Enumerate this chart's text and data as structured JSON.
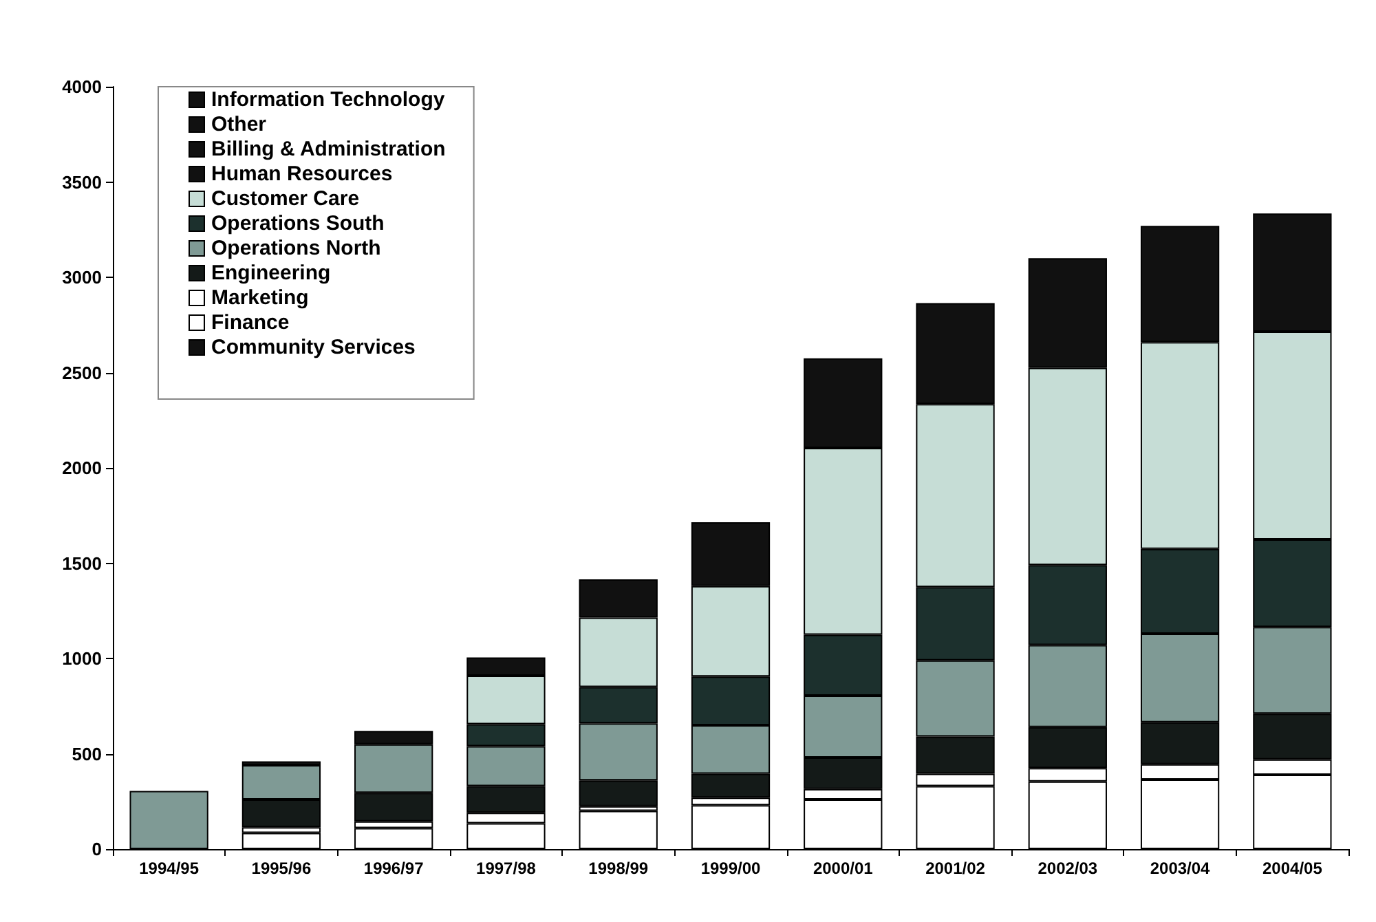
{
  "chart_data": {
    "type": "bar",
    "stacked": true,
    "categories": [
      "1994/95",
      "1995/96",
      "1996/97",
      "1997/98",
      "1998/99",
      "1999/00",
      "2000/01",
      "2001/02",
      "2002/03",
      "2003/04",
      "2004/05"
    ],
    "series": [
      {
        "name": "Community Services",
        "color": "#111111",
        "values": [
          null,
          null,
          null,
          null,
          null,
          null,
          null,
          null,
          null,
          null,
          null
        ]
      },
      {
        "name": "Finance",
        "color": "#ffffff",
        "values": [
          0,
          85,
          110,
          135,
          200,
          230,
          260,
          330,
          355,
          365,
          390
        ]
      },
      {
        "name": "Marketing",
        "color": "#ffffff",
        "values": [
          0,
          30,
          35,
          55,
          25,
          40,
          55,
          65,
          70,
          80,
          80
        ]
      },
      {
        "name": "Engineering",
        "color": "#141a18",
        "values": [
          0,
          145,
          150,
          140,
          135,
          125,
          165,
          195,
          215,
          220,
          240
        ]
      },
      {
        "name": "Operations North",
        "color": "#7f9a95",
        "values": [
          305,
          180,
          255,
          210,
          300,
          255,
          325,
          400,
          430,
          465,
          455
        ]
      },
      {
        "name": "Operations South",
        "color": "#1c302d",
        "values": [
          0,
          0,
          0,
          115,
          190,
          255,
          320,
          385,
          420,
          445,
          460
        ]
      },
      {
        "name": "Customer Care",
        "color": "#c6ddd6",
        "values": [
          0,
          0,
          0,
          255,
          365,
          475,
          980,
          960,
          1035,
          1085,
          1090
        ]
      },
      {
        "name": "Human Resources",
        "color": "#111111",
        "values": [
          null,
          null,
          null,
          null,
          null,
          null,
          null,
          null,
          null,
          null,
          null
        ]
      },
      {
        "name": "Billing & Administration",
        "color": "#111111",
        "values": [
          null,
          null,
          null,
          null,
          null,
          null,
          null,
          null,
          null,
          null,
          null
        ]
      },
      {
        "name": "Other",
        "color": "#111111",
        "values": [
          null,
          null,
          null,
          null,
          null,
          null,
          null,
          null,
          null,
          null,
          null
        ]
      },
      {
        "name": "Information Technology",
        "color": "#111111",
        "values": [
          0,
          20,
          70,
          95,
          200,
          335,
          470,
          530,
          575,
          610,
          620
        ]
      }
    ],
    "ylim": [
      0,
      4000
    ],
    "yticks": [
      0,
      500,
      1000,
      1500,
      2000,
      2500,
      3000,
      3500,
      4000
    ],
    "grid": false,
    "legend": "top left"
  }
}
